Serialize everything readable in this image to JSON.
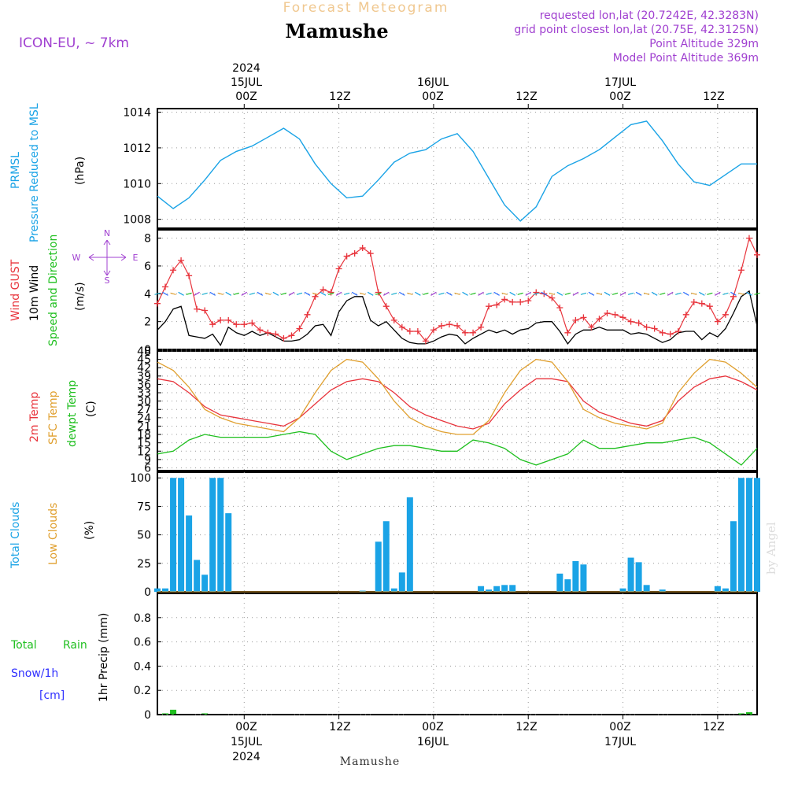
{
  "header": {
    "super_title": "Forecast Meteogram",
    "location": "Mamushe",
    "model": "ICON-EU, ~ 7km",
    "requested": "requested lon,lat (20.7242E, 42.3283N)",
    "grid_point": "grid point closest lon,lat (20.75E, 42.3125N)",
    "point_altitude": "Point Altitude 329m",
    "model_altitude": "Model Point Altitude 369m",
    "footer_location": "Mamushe",
    "watermark": "by Angel"
  },
  "time_axis": {
    "top": [
      {
        "label": "00Z",
        "day": "15JUL",
        "year": "2024"
      },
      {
        "label": "12Z",
        "day": "",
        "year": ""
      },
      {
        "label": "00Z",
        "day": "16JUL",
        "year": ""
      },
      {
        "label": "12Z",
        "day": "",
        "year": ""
      },
      {
        "label": "00Z",
        "day": "17JUL",
        "year": ""
      },
      {
        "label": "12Z",
        "day": "",
        "year": ""
      }
    ],
    "hours_range": [
      -11,
      65
    ]
  },
  "colors": {
    "pressure": "#1aa3e6",
    "gust": "#e8343c",
    "wind": "#000000",
    "direction": "#1fbf1f",
    "temp2m": "#e8343c",
    "sfc": "#e0a030",
    "dewpt": "#1fbf1f",
    "clouds": "#1aa3e6",
    "lowclouds": "#e0a030",
    "rain": "#1fbf1f",
    "snow": "#3030ff",
    "compass": "#a040d0",
    "header_purple": "#a040d0",
    "title_orange": "#f0c890"
  },
  "panels": {
    "pressure": {
      "label1": "PRMSL",
      "label2": "Pressure Reduced to MSL",
      "unit": "(hPa)"
    },
    "wind": {
      "label1": "Wind GUST",
      "label2": "10m Wind",
      "label3": "Speed and Direction",
      "unit": "(m/s)",
      "compass": {
        "n": "N",
        "e": "E",
        "s": "S",
        "w": "W"
      }
    },
    "temp": {
      "label1": "2m Temp",
      "label2": "SFC Temp",
      "label3": "dewpt Temp",
      "unit": "(C)"
    },
    "clouds": {
      "label1": "Total Clouds",
      "label2": "Low Clouds",
      "unit": "(%)"
    },
    "precip": {
      "label1": "Total",
      "label2": "Rain",
      "label3": "Snow/1h",
      "label4": "[cm]",
      "unit": "1hr Precip (mm)"
    }
  },
  "chart_data": [
    {
      "type": "line",
      "title": "PRMSL Pressure Reduced to MSL",
      "ylabel": "(hPa)",
      "ylim": [
        1007.5,
        1014.2
      ],
      "yticks": [
        1008,
        1010,
        1012,
        1014
      ],
      "x": [
        -11,
        -9,
        -7,
        -5,
        -3,
        -1,
        1,
        3,
        5,
        7,
        9,
        11,
        13,
        15,
        17,
        19,
        21,
        23,
        25,
        27,
        29,
        31,
        33,
        35,
        37,
        39,
        41,
        43,
        45,
        47,
        49,
        51,
        53,
        55,
        57,
        59,
        61,
        63,
        65
      ],
      "series": [
        {
          "name": "PRMSL",
          "values": [
            1009.3,
            1008.6,
            1009.2,
            1010.2,
            1011.3,
            1011.8,
            1012.1,
            1012.6,
            1013.1,
            1012.5,
            1011.1,
            1010.0,
            1009.2,
            1009.3,
            1010.2,
            1011.2,
            1011.7,
            1011.9,
            1012.5,
            1012.8,
            1011.8,
            1010.3,
            1008.8,
            1007.9,
            1008.7,
            1010.4,
            1011.0,
            1011.4,
            1011.9,
            1012.6,
            1013.3,
            1013.5,
            1012.4,
            1011.1,
            1010.1,
            1009.9,
            1010.5,
            1011.1,
            1011.1
          ]
        }
      ]
    },
    {
      "type": "line",
      "title": "Wind GUST / 10m Wind",
      "ylabel": "(m/s)",
      "ylim": [
        0,
        8.6
      ],
      "yticks": [
        0,
        2,
        4,
        6,
        8
      ],
      "x": [
        -11,
        -10,
        -9,
        -8,
        -7,
        -6,
        -5,
        -4,
        -3,
        -2,
        -1,
        0,
        1,
        2,
        3,
        4,
        5,
        6,
        7,
        8,
        9,
        10,
        11,
        12,
        13,
        14,
        15,
        16,
        17,
        18,
        19,
        20,
        21,
        22,
        23,
        24,
        25,
        26,
        27,
        28,
        29,
        30,
        31,
        32,
        33,
        34,
        35,
        36,
        37,
        38,
        39,
        40,
        41,
        42,
        43,
        44,
        45,
        46,
        47,
        48,
        49,
        50,
        51,
        52,
        53,
        54,
        55,
        56,
        57,
        58,
        59,
        60,
        61,
        62,
        63,
        64,
        65
      ],
      "series": [
        {
          "name": "Wind GUST",
          "values": [
            3.3,
            4.5,
            5.7,
            6.4,
            5.3,
            2.9,
            2.8,
            1.8,
            2.1,
            2.1,
            1.8,
            1.8,
            1.9,
            1.4,
            1.2,
            1.1,
            0.8,
            1.0,
            1.5,
            2.5,
            3.8,
            4.3,
            4.1,
            5.8,
            6.7,
            6.9,
            7.3,
            6.9,
            4.1,
            3.1,
            2.1,
            1.6,
            1.3,
            1.3,
            0.6,
            1.4,
            1.7,
            1.8,
            1.7,
            1.2,
            1.2,
            1.6,
            3.1,
            3.2,
            3.6,
            3.4,
            3.4,
            3.5,
            4.1,
            4.0,
            3.7,
            3.0,
            1.2,
            2.1,
            2.3,
            1.6,
            2.2,
            2.6,
            2.5,
            2.3,
            2.0,
            1.9,
            1.6,
            1.5,
            1.2,
            1.1,
            1.3,
            2.5,
            3.4,
            3.3,
            3.1,
            2.0,
            2.5,
            3.8,
            5.7,
            8.0,
            6.8
          ]
        },
        {
          "name": "10m Wind",
          "values": [
            1.4,
            2.0,
            2.9,
            3.1,
            1.0,
            0.9,
            0.8,
            1.1,
            0.3,
            1.6,
            1.2,
            1.0,
            1.3,
            1.0,
            1.2,
            0.9,
            0.6,
            0.6,
            0.7,
            1.1,
            1.7,
            1.8,
            1.0,
            2.7,
            3.5,
            3.8,
            3.8,
            2.1,
            1.7,
            2.0,
            1.4,
            0.8,
            0.5,
            0.4,
            0.4,
            0.6,
            0.9,
            1.1,
            1.0,
            0.4,
            0.8,
            1.1,
            1.4,
            1.2,
            1.4,
            1.1,
            1.4,
            1.5,
            1.9,
            2.0,
            2.0,
            1.3,
            0.4,
            1.1,
            1.4,
            1.4,
            1.6,
            1.4,
            1.4,
            1.4,
            1.1,
            1.2,
            1.1,
            0.8,
            0.5,
            0.7,
            1.2,
            1.3,
            1.3,
            0.7,
            1.2,
            0.9,
            1.5,
            2.6,
            3.8,
            4.2,
            1.7
          ]
        }
      ]
    },
    {
      "type": "line",
      "title": "2m Temp / SFC Temp / dewpt Temp",
      "ylabel": "(C)",
      "ylim": [
        5,
        48
      ],
      "yticks": [
        6,
        9,
        12,
        15,
        18,
        21,
        24,
        27,
        30,
        33,
        36,
        39,
        42,
        45,
        48
      ],
      "x": [
        -11,
        -9,
        -7,
        -5,
        -3,
        -1,
        1,
        3,
        5,
        7,
        9,
        11,
        13,
        15,
        17,
        19,
        21,
        23,
        25,
        27,
        29,
        31,
        33,
        35,
        37,
        39,
        41,
        43,
        45,
        47,
        49,
        51,
        53,
        55,
        57,
        59,
        61,
        63,
        65
      ],
      "series": [
        {
          "name": "2m Temp",
          "values": [
            38,
            37,
            33,
            28,
            25,
            24,
            23,
            22,
            21,
            24,
            29,
            34,
            37,
            38,
            37,
            33,
            28,
            25,
            23,
            21,
            20,
            22,
            29,
            34,
            38,
            38,
            37,
            30,
            26,
            24,
            22,
            21,
            23,
            30,
            35,
            38,
            39,
            37,
            34
          ]
        },
        {
          "name": "SFC Temp",
          "values": [
            44,
            41,
            35,
            27,
            24,
            22,
            21,
            20,
            19,
            24,
            33,
            41,
            45,
            44,
            38,
            30,
            24,
            21,
            19,
            18,
            18,
            23,
            33,
            41,
            45,
            44,
            37,
            27,
            24,
            22,
            21,
            20,
            22,
            33,
            40,
            45,
            44,
            40,
            35
          ]
        },
        {
          "name": "dewpt Temp",
          "values": [
            11,
            12,
            16,
            18,
            17,
            17,
            17,
            17,
            18,
            19,
            18,
            12,
            9,
            11,
            13,
            14,
            14,
            13,
            12,
            12,
            16,
            15,
            13,
            9,
            7,
            9,
            11,
            16,
            13,
            13,
            14,
            15,
            15,
            16,
            17,
            15,
            11,
            7,
            13
          ]
        }
      ]
    },
    {
      "type": "bar",
      "title": "Total Clouds / Low Clouds",
      "ylabel": "(%)",
      "ylim": [
        0,
        105
      ],
      "yticks": [
        0,
        25,
        50,
        75,
        100
      ],
      "x": [
        -11,
        -10,
        -9,
        -8,
        -7,
        -6,
        -5,
        -4,
        -3,
        -2,
        -1,
        0,
        1,
        2,
        3,
        4,
        5,
        6,
        7,
        8,
        9,
        10,
        11,
        12,
        13,
        14,
        15,
        16,
        17,
        18,
        19,
        20,
        21,
        22,
        23,
        24,
        25,
        26,
        27,
        28,
        29,
        30,
        31,
        32,
        33,
        34,
        35,
        36,
        37,
        38,
        39,
        40,
        41,
        42,
        43,
        44,
        45,
        46,
        47,
        48,
        49,
        50,
        51,
        52,
        53,
        54,
        55,
        56,
        57,
        58,
        59,
        60,
        61,
        62,
        63,
        64,
        65
      ],
      "series": [
        {
          "name": "Total Clouds",
          "values": [
            3,
            3,
            100,
            100,
            67,
            28,
            15,
            100,
            100,
            69,
            0,
            0,
            0,
            0,
            0,
            0,
            0,
            0,
            0,
            0,
            0,
            0,
            0,
            0,
            0,
            0,
            1,
            0,
            44,
            62,
            3,
            17,
            83,
            0,
            0,
            0,
            0,
            0,
            0,
            0,
            0,
            5,
            2,
            5,
            6,
            6,
            0,
            0,
            0,
            0,
            0,
            16,
            11,
            27,
            24,
            0,
            0,
            0,
            0,
            3,
            30,
            26,
            6,
            0,
            2,
            0,
            0,
            0,
            0,
            0,
            0,
            5,
            3,
            62,
            100,
            100,
            100
          ]
        },
        {
          "name": "Low Clouds",
          "values": [
            0,
            0,
            0,
            0,
            0,
            0,
            0,
            0,
            0,
            0,
            0,
            0,
            0,
            0,
            0,
            0,
            0,
            0,
            0,
            0,
            0,
            0,
            0,
            0,
            0,
            0,
            0,
            0,
            0,
            0,
            0,
            0,
            0,
            0,
            0,
            0,
            0,
            0,
            0,
            0,
            0,
            0,
            0,
            0,
            0,
            0,
            0,
            0,
            0,
            0,
            0,
            0,
            0,
            0,
            0,
            0,
            0,
            0,
            0,
            0,
            0,
            0,
            0,
            0,
            0,
            0,
            0,
            0,
            0,
            0,
            0,
            0,
            0,
            0,
            0,
            0,
            0
          ]
        }
      ]
    },
    {
      "type": "bar",
      "title": "Total Rain Snow/1h",
      "ylabel": "1hr Precip (mm)",
      "ylim": [
        0,
        1.0
      ],
      "yticks": [
        0,
        0.2,
        0.4,
        0.6,
        0.8
      ],
      "x": [
        -10,
        -9,
        -5,
        63,
        64
      ],
      "series": [
        {
          "name": "Total Rain",
          "values": [
            0.01,
            0.04,
            0.01,
            0.01,
            0.02
          ]
        }
      ]
    }
  ]
}
